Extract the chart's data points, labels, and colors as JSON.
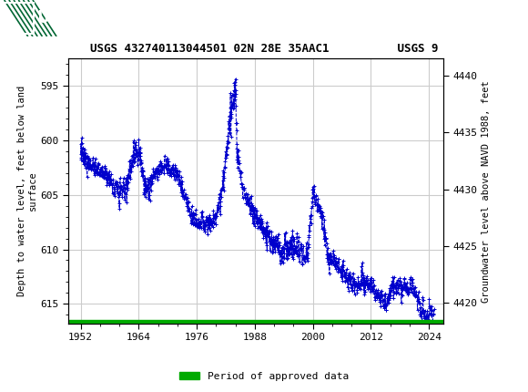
{
  "title": "USGS 432740113044501 02N 28E 35AAC1          USGS 9",
  "ylabel_left": "Depth to water level, feet below land\nsurface",
  "ylabel_right": "Groundwater level above NAVD 1988, feet",
  "ylim_left": [
    616.8,
    592.5
  ],
  "ylim_right": [
    4418.2,
    4441.5
  ],
  "xlim": [
    1949.5,
    2027
  ],
  "xticks": [
    1952,
    1964,
    1976,
    1988,
    2000,
    2012,
    2024
  ],
  "yticks_left": [
    595,
    600,
    605,
    610,
    615
  ],
  "yticks_right": [
    4420,
    4425,
    4430,
    4435,
    4440
  ],
  "line_color": "#0000CC",
  "marker": "+",
  "markersize": 3,
  "linewidth": 0.7,
  "green_bar_color": "#00AA00",
  "header_bg_color": "#006633",
  "header_text_color": "#FFFFFF",
  "legend_label": "Period of approved data",
  "grid_color": "#CCCCCC",
  "background_color": "#FFFFFF",
  "font_family": "monospace"
}
